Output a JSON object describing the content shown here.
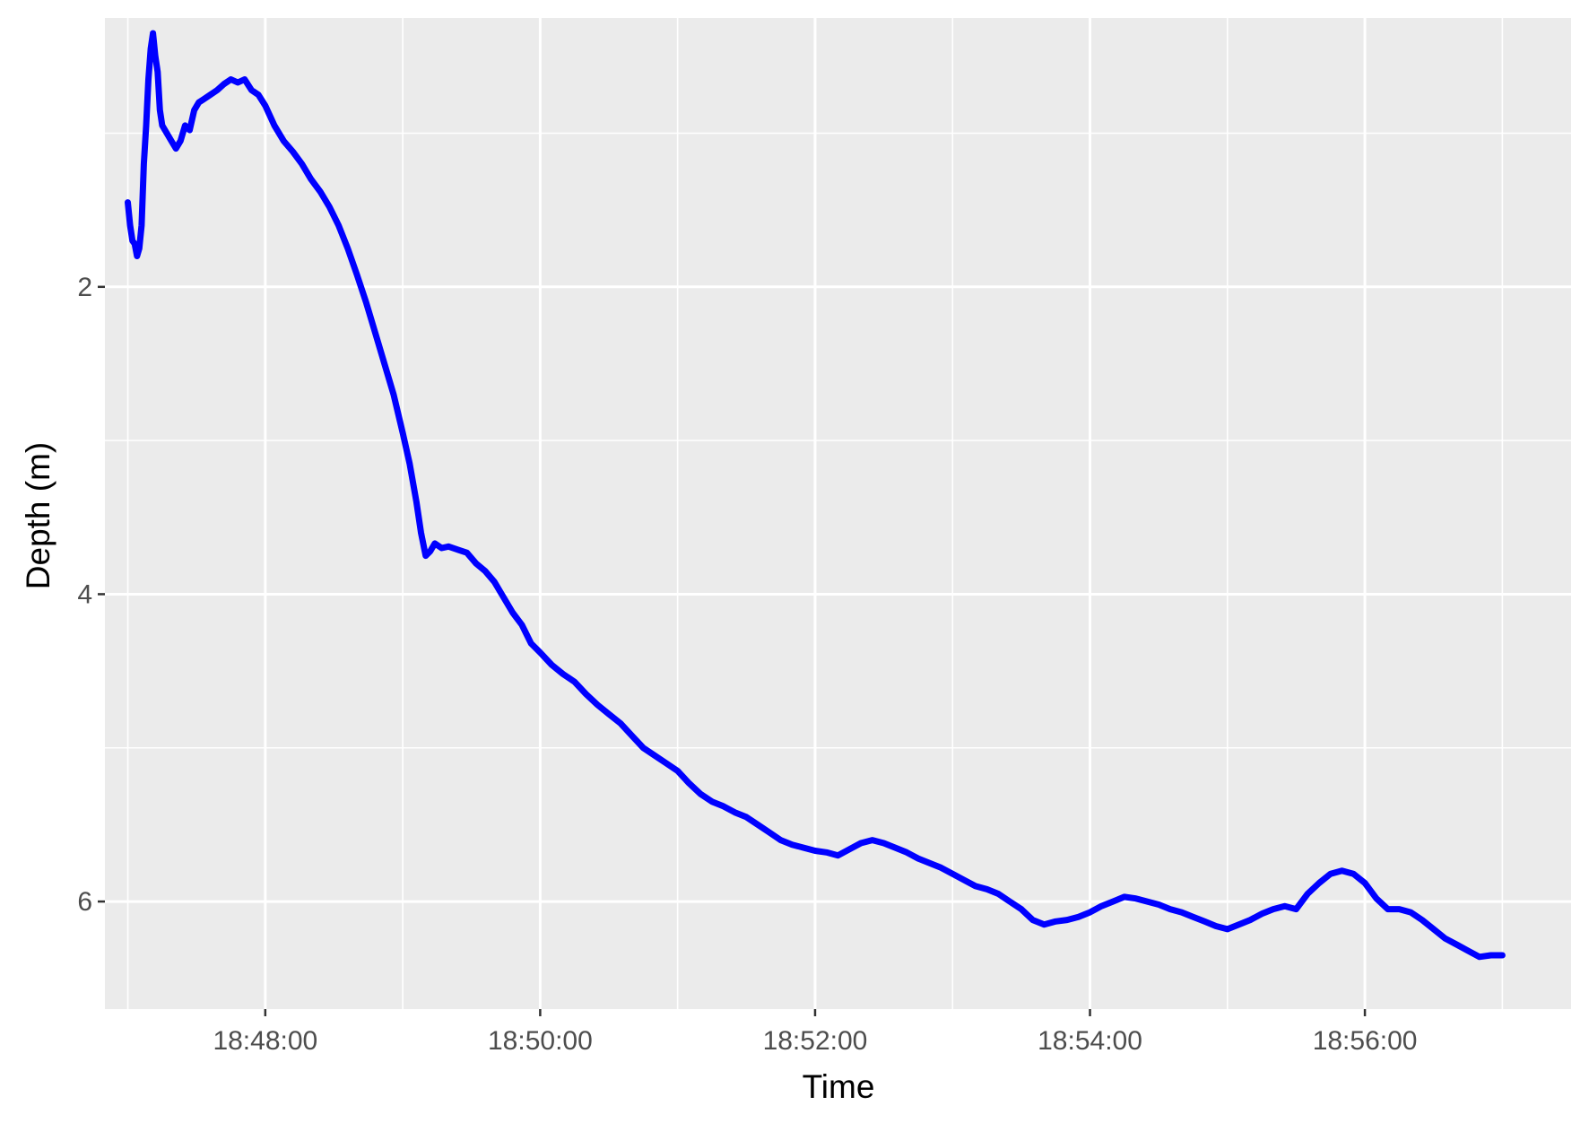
{
  "chart_data": {
    "type": "line",
    "title": "",
    "xlabel": "Time",
    "ylabel": "Depth (m)",
    "x_type": "time",
    "xlim": [
      "18:46:50",
      "18:57:30"
    ],
    "ylim": [
      0.25,
      6.7
    ],
    "y_reversed": true,
    "x_ticks": [
      "18:48:00",
      "18:50:00",
      "18:52:00",
      "18:54:00",
      "18:56:00"
    ],
    "y_ticks": [
      2,
      4,
      6
    ],
    "grid": true,
    "legend": "none",
    "series": [
      {
        "color": "#0000ff",
        "points": [
          [
            "18:47:00",
            1.45
          ],
          [
            "18:47:01",
            1.6
          ],
          [
            "18:47:02",
            1.7
          ],
          [
            "18:47:03",
            1.72
          ],
          [
            "18:47:04",
            1.8
          ],
          [
            "18:47:05",
            1.75
          ],
          [
            "18:47:06",
            1.6
          ],
          [
            "18:47:07",
            1.2
          ],
          [
            "18:47:08",
            0.95
          ],
          [
            "18:47:09",
            0.65
          ],
          [
            "18:47:10",
            0.45
          ],
          [
            "18:47:11",
            0.35
          ],
          [
            "18:47:12",
            0.5
          ],
          [
            "18:47:13",
            0.6
          ],
          [
            "18:47:14",
            0.85
          ],
          [
            "18:47:15",
            0.95
          ],
          [
            "18:47:17",
            1.0
          ],
          [
            "18:47:19",
            1.05
          ],
          [
            "18:47:21",
            1.1
          ],
          [
            "18:47:23",
            1.05
          ],
          [
            "18:47:25",
            0.95
          ],
          [
            "18:47:27",
            0.98
          ],
          [
            "18:47:29",
            0.85
          ],
          [
            "18:47:31",
            0.8
          ],
          [
            "18:47:33",
            0.78
          ],
          [
            "18:47:36",
            0.75
          ],
          [
            "18:47:39",
            0.72
          ],
          [
            "18:47:42",
            0.68
          ],
          [
            "18:47:45",
            0.65
          ],
          [
            "18:47:48",
            0.67
          ],
          [
            "18:47:51",
            0.65
          ],
          [
            "18:47:54",
            0.72
          ],
          [
            "18:47:57",
            0.75
          ],
          [
            "18:48:00",
            0.82
          ],
          [
            "18:48:04",
            0.95
          ],
          [
            "18:48:08",
            1.05
          ],
          [
            "18:48:12",
            1.12
          ],
          [
            "18:48:16",
            1.2
          ],
          [
            "18:48:20",
            1.3
          ],
          [
            "18:48:24",
            1.38
          ],
          [
            "18:48:28",
            1.48
          ],
          [
            "18:48:32",
            1.6
          ],
          [
            "18:48:36",
            1.75
          ],
          [
            "18:48:40",
            1.92
          ],
          [
            "18:48:44",
            2.1
          ],
          [
            "18:48:48",
            2.3
          ],
          [
            "18:48:52",
            2.5
          ],
          [
            "18:48:56",
            2.7
          ],
          [
            "18:49:00",
            2.95
          ],
          [
            "18:49:03",
            3.15
          ],
          [
            "18:49:06",
            3.4
          ],
          [
            "18:49:08",
            3.6
          ],
          [
            "18:49:10",
            3.75
          ],
          [
            "18:49:12",
            3.72
          ],
          [
            "18:49:14",
            3.67
          ],
          [
            "18:49:17",
            3.7
          ],
          [
            "18:49:20",
            3.69
          ],
          [
            "18:49:24",
            3.71
          ],
          [
            "18:49:28",
            3.73
          ],
          [
            "18:49:32",
            3.8
          ],
          [
            "18:49:36",
            3.85
          ],
          [
            "18:49:40",
            3.92
          ],
          [
            "18:49:44",
            4.02
          ],
          [
            "18:49:48",
            4.12
          ],
          [
            "18:49:52",
            4.2
          ],
          [
            "18:49:56",
            4.32
          ],
          [
            "18:50:00",
            4.38
          ],
          [
            "18:50:05",
            4.46
          ],
          [
            "18:50:10",
            4.52
          ],
          [
            "18:50:15",
            4.57
          ],
          [
            "18:50:20",
            4.65
          ],
          [
            "18:50:25",
            4.72
          ],
          [
            "18:50:30",
            4.78
          ],
          [
            "18:50:35",
            4.84
          ],
          [
            "18:50:40",
            4.92
          ],
          [
            "18:50:45",
            5.0
          ],
          [
            "18:50:50",
            5.05
          ],
          [
            "18:50:55",
            5.1
          ],
          [
            "18:51:00",
            5.15
          ],
          [
            "18:51:05",
            5.23
          ],
          [
            "18:51:10",
            5.3
          ],
          [
            "18:51:15",
            5.35
          ],
          [
            "18:51:20",
            5.38
          ],
          [
            "18:51:25",
            5.42
          ],
          [
            "18:51:30",
            5.45
          ],
          [
            "18:51:35",
            5.5
          ],
          [
            "18:51:40",
            5.55
          ],
          [
            "18:51:45",
            5.6
          ],
          [
            "18:51:50",
            5.63
          ],
          [
            "18:51:55",
            5.65
          ],
          [
            "18:52:00",
            5.67
          ],
          [
            "18:52:05",
            5.68
          ],
          [
            "18:52:10",
            5.7
          ],
          [
            "18:52:15",
            5.66
          ],
          [
            "18:52:20",
            5.62
          ],
          [
            "18:52:25",
            5.6
          ],
          [
            "18:52:30",
            5.62
          ],
          [
            "18:52:35",
            5.65
          ],
          [
            "18:52:40",
            5.68
          ],
          [
            "18:52:45",
            5.72
          ],
          [
            "18:52:50",
            5.75
          ],
          [
            "18:52:55",
            5.78
          ],
          [
            "18:53:00",
            5.82
          ],
          [
            "18:53:05",
            5.86
          ],
          [
            "18:53:10",
            5.9
          ],
          [
            "18:53:15",
            5.92
          ],
          [
            "18:53:20",
            5.95
          ],
          [
            "18:53:25",
            6.0
          ],
          [
            "18:53:30",
            6.05
          ],
          [
            "18:53:35",
            6.12
          ],
          [
            "18:53:40",
            6.15
          ],
          [
            "18:53:45",
            6.13
          ],
          [
            "18:53:50",
            6.12
          ],
          [
            "18:53:55",
            6.1
          ],
          [
            "18:54:00",
            6.07
          ],
          [
            "18:54:05",
            6.03
          ],
          [
            "18:54:10",
            6.0
          ],
          [
            "18:54:15",
            5.97
          ],
          [
            "18:54:20",
            5.98
          ],
          [
            "18:54:25",
            6.0
          ],
          [
            "18:54:30",
            6.02
          ],
          [
            "18:54:35",
            6.05
          ],
          [
            "18:54:40",
            6.07
          ],
          [
            "18:54:45",
            6.1
          ],
          [
            "18:54:50",
            6.13
          ],
          [
            "18:54:55",
            6.16
          ],
          [
            "18:55:00",
            6.18
          ],
          [
            "18:55:05",
            6.15
          ],
          [
            "18:55:10",
            6.12
          ],
          [
            "18:55:15",
            6.08
          ],
          [
            "18:55:20",
            6.05
          ],
          [
            "18:55:25",
            6.03
          ],
          [
            "18:55:30",
            6.05
          ],
          [
            "18:55:35",
            5.95
          ],
          [
            "18:55:40",
            5.88
          ],
          [
            "18:55:45",
            5.82
          ],
          [
            "18:55:50",
            5.8
          ],
          [
            "18:55:55",
            5.82
          ],
          [
            "18:56:00",
            5.88
          ],
          [
            "18:56:05",
            5.98
          ],
          [
            "18:56:10",
            6.05
          ],
          [
            "18:56:15",
            6.05
          ],
          [
            "18:56:20",
            6.07
          ],
          [
            "18:56:25",
            6.12
          ],
          [
            "18:56:30",
            6.18
          ],
          [
            "18:56:35",
            6.24
          ],
          [
            "18:56:40",
            6.28
          ],
          [
            "18:56:45",
            6.32
          ],
          [
            "18:56:50",
            6.36
          ],
          [
            "18:56:55",
            6.35
          ],
          [
            "18:57:00",
            6.35
          ]
        ]
      }
    ]
  }
}
